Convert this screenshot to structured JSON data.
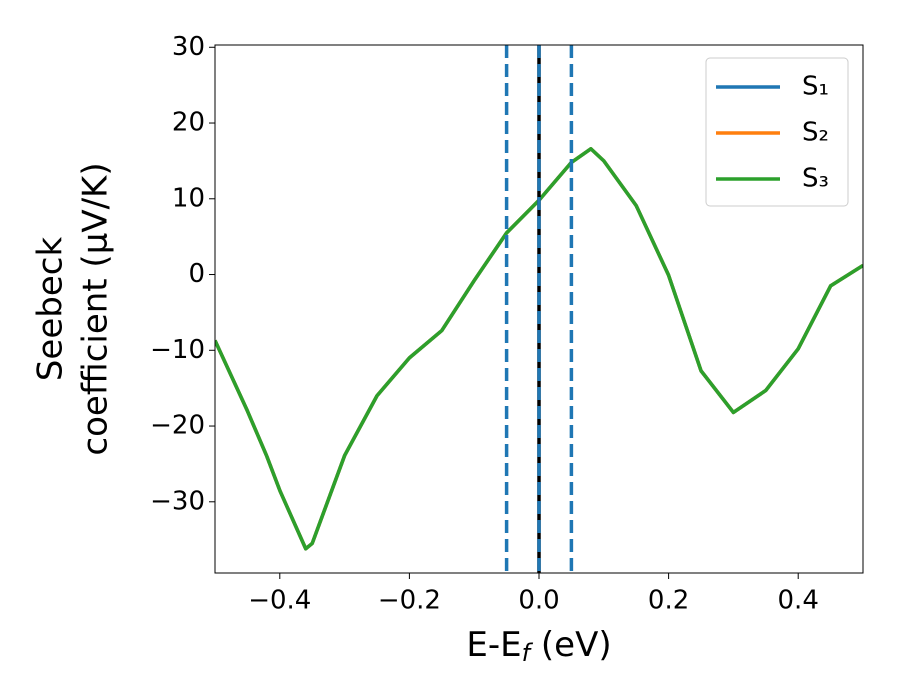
{
  "chart_data": {
    "type": "line",
    "xlabel": [
      "E-E",
      "f",
      " (eV)"
    ],
    "ylabel": [
      "Seebeck",
      "coefficient  (μV/K)"
    ],
    "x": [
      -0.5,
      -0.45,
      -0.42,
      -0.4,
      -0.36,
      -0.35,
      -0.3,
      -0.25,
      -0.2,
      -0.15,
      -0.1,
      -0.05,
      0,
      0.05,
      0.08,
      0.1,
      0.15,
      0.2,
      0.25,
      0.3,
      0.35,
      0.4,
      0.45,
      0.5
    ],
    "series": [
      {
        "name": "S₁",
        "color": "#1f77b4",
        "values": [
          -8.7,
          -18,
          -24,
          -28.5,
          -36.2,
          -35.5,
          -23.9,
          -16,
          -11,
          -7.4,
          -0.8,
          5.5,
          9.8,
          14.8,
          16.6,
          15,
          9.1,
          -0.1,
          -12.7,
          -18.2,
          -15.3,
          -9.8,
          -1.5,
          1.2
        ]
      },
      {
        "name": "S₂",
        "color": "#ff7f0e",
        "values": [
          -8.7,
          -18,
          -24,
          -28.5,
          -36.2,
          -35.5,
          -23.9,
          -16,
          -11,
          -7.4,
          -0.8,
          5.5,
          9.8,
          14.8,
          16.6,
          15,
          9.1,
          -0.1,
          -12.7,
          -18.2,
          -15.3,
          -9.8,
          -1.5,
          1.2
        ]
      },
      {
        "name": "S₃",
        "color": "#2ca02c",
        "values": [
          -8.7,
          -18,
          -24,
          -28.5,
          -36.2,
          -35.5,
          -23.9,
          -16,
          -11,
          -7.4,
          -0.8,
          5.5,
          9.8,
          14.8,
          16.6,
          15,
          9.1,
          -0.1,
          -12.7,
          -18.2,
          -15.3,
          -9.8,
          -1.5,
          1.2
        ]
      }
    ],
    "vlines": [
      {
        "x": 0,
        "color": "#000000",
        "style": "solid"
      },
      {
        "x": -0.05,
        "color": "#1f77b4",
        "style": "dashed"
      },
      {
        "x": 0,
        "color": "#1f77b4",
        "style": "dashed"
      },
      {
        "x": 0.05,
        "color": "#1f77b4",
        "style": "dashed"
      }
    ],
    "xlim": [
      -0.5,
      0.5
    ],
    "ylim": [
      -39.4,
      30.3
    ],
    "xticks": [
      {
        "value": -0.4,
        "label": "−0.4"
      },
      {
        "value": -0.2,
        "label": "−0.2"
      },
      {
        "value": 0,
        "label": "0.0"
      },
      {
        "value": 0.2,
        "label": "0.2"
      },
      {
        "value": 0.4,
        "label": "0.4"
      }
    ],
    "yticks": [
      {
        "value": -30,
        "label": "−30"
      },
      {
        "value": -20,
        "label": "−20"
      },
      {
        "value": -10,
        "label": "−10"
      },
      0,
      10,
      20,
      30
    ],
    "legend": "upper right",
    "grid": false
  }
}
